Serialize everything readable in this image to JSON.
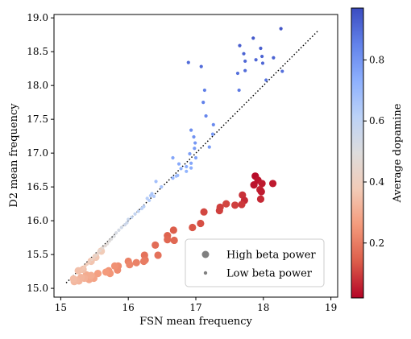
{
  "chart_data": {
    "type": "scatter",
    "title": "",
    "xlabel": "FSN mean frequency",
    "ylabel": "D2 mean frequency",
    "xlim": [
      14.9,
      19.1
    ],
    "ylim": [
      14.87,
      19.05
    ],
    "xticks": [
      15,
      16,
      17,
      18,
      19
    ],
    "yticks": [
      15.0,
      15.5,
      16.0,
      16.5,
      17.0,
      17.5,
      18.0,
      18.5,
      19.0
    ],
    "xtick_labels": [
      "15",
      "16",
      "17",
      "18",
      "19"
    ],
    "ytick_labels": [
      "15.0",
      "15.5",
      "16.0",
      "16.5",
      "17.0",
      "17.5",
      "18.0",
      "18.5",
      "19.0"
    ],
    "grid": false,
    "reference_line": {
      "style": "dotted",
      "x": [
        15.08,
        18.82
      ],
      "y": [
        15.08,
        18.82
      ]
    },
    "colorbar": {
      "label": "Average dopamine",
      "range": [
        0.02,
        0.97
      ],
      "ticks": [
        0.2,
        0.4,
        0.6,
        0.8
      ],
      "tick_labels": [
        "0.2",
        "0.4",
        "0.6",
        "0.8"
      ],
      "colormap": "coolwarm_r",
      "colors": [
        "#b40426",
        "#dc5d4a",
        "#f49a7b",
        "#f2cbb7",
        "#dddcdc",
        "#bcd2f7",
        "#8db0fe",
        "#6282ea",
        "#3b4cc0"
      ]
    },
    "legend": {
      "placement": "lower-right",
      "entries": [
        {
          "label": "High beta power",
          "marker": "large"
        },
        {
          "label": "Low beta power",
          "marker": "small"
        }
      ]
    },
    "series": [
      {
        "name": "High beta power",
        "marker_size": "large",
        "points": [
          {
            "x": 17.88,
            "y": 16.66,
            "c": 0.03
          },
          {
            "x": 17.92,
            "y": 16.6,
            "c": 0.04
          },
          {
            "x": 17.98,
            "y": 16.55,
            "c": 0.05
          },
          {
            "x": 17.86,
            "y": 16.53,
            "c": 0.04
          },
          {
            "x": 18.14,
            "y": 16.55,
            "c": 0.05
          },
          {
            "x": 17.95,
            "y": 16.46,
            "c": 0.06
          },
          {
            "x": 17.97,
            "y": 16.43,
            "c": 0.05
          },
          {
            "x": 17.96,
            "y": 16.32,
            "c": 0.07
          },
          {
            "x": 17.69,
            "y": 16.38,
            "c": 0.08
          },
          {
            "x": 17.72,
            "y": 16.3,
            "c": 0.07
          },
          {
            "x": 17.58,
            "y": 16.23,
            "c": 0.1
          },
          {
            "x": 17.68,
            "y": 16.24,
            "c": 0.09
          },
          {
            "x": 17.45,
            "y": 16.25,
            "c": 0.11
          },
          {
            "x": 17.36,
            "y": 16.2,
            "c": 0.1
          },
          {
            "x": 17.35,
            "y": 16.15,
            "c": 0.1
          },
          {
            "x": 17.12,
            "y": 16.13,
            "c": 0.11
          },
          {
            "x": 17.07,
            "y": 15.96,
            "c": 0.12
          },
          {
            "x": 16.95,
            "y": 15.9,
            "c": 0.13
          },
          {
            "x": 16.67,
            "y": 15.86,
            "c": 0.14
          },
          {
            "x": 16.58,
            "y": 15.78,
            "c": 0.15
          },
          {
            "x": 16.68,
            "y": 15.71,
            "c": 0.16
          },
          {
            "x": 16.58,
            "y": 15.72,
            "c": 0.16
          },
          {
            "x": 16.4,
            "y": 15.64,
            "c": 0.17
          },
          {
            "x": 16.44,
            "y": 15.49,
            "c": 0.18
          },
          {
            "x": 16.24,
            "y": 15.49,
            "c": 0.18
          },
          {
            "x": 16.25,
            "y": 15.42,
            "c": 0.19
          },
          {
            "x": 16.23,
            "y": 15.4,
            "c": 0.2
          },
          {
            "x": 16.12,
            "y": 15.38,
            "c": 0.21
          },
          {
            "x": 16.0,
            "y": 15.4,
            "c": 0.21
          },
          {
            "x": 16.02,
            "y": 15.35,
            "c": 0.22
          },
          {
            "x": 15.85,
            "y": 15.33,
            "c": 0.23
          },
          {
            "x": 15.84,
            "y": 15.27,
            "c": 0.23
          },
          {
            "x": 15.8,
            "y": 15.33,
            "c": 0.24
          },
          {
            "x": 15.71,
            "y": 15.26,
            "c": 0.25
          },
          {
            "x": 15.73,
            "y": 15.22,
            "c": 0.25
          },
          {
            "x": 15.67,
            "y": 15.24,
            "c": 0.26
          },
          {
            "x": 15.55,
            "y": 15.22,
            "c": 0.27
          },
          {
            "x": 15.49,
            "y": 15.15,
            "c": 0.28
          },
          {
            "x": 15.42,
            "y": 15.13,
            "c": 0.29
          },
          {
            "x": 15.45,
            "y": 15.19,
            "c": 0.3
          },
          {
            "x": 15.38,
            "y": 15.2,
            "c": 0.3
          },
          {
            "x": 15.35,
            "y": 15.15,
            "c": 0.31
          },
          {
            "x": 15.3,
            "y": 15.16,
            "c": 0.32
          },
          {
            "x": 15.27,
            "y": 15.11,
            "c": 0.32
          },
          {
            "x": 15.23,
            "y": 15.12,
            "c": 0.33
          },
          {
            "x": 15.2,
            "y": 15.1,
            "c": 0.33
          },
          {
            "x": 15.19,
            "y": 15.14,
            "c": 0.34
          },
          {
            "x": 15.26,
            "y": 15.26,
            "c": 0.35
          },
          {
            "x": 15.33,
            "y": 15.28,
            "c": 0.35
          },
          {
            "x": 15.45,
            "y": 15.4,
            "c": 0.36
          },
          {
            "x": 15.52,
            "y": 15.46,
            "c": 0.37
          },
          {
            "x": 15.6,
            "y": 15.55,
            "c": 0.38
          }
        ]
      },
      {
        "name": "Low beta power",
        "marker_size": "small",
        "points": [
          {
            "x": 18.26,
            "y": 18.84,
            "c": 0.95
          },
          {
            "x": 17.85,
            "y": 18.7,
            "c": 0.94
          },
          {
            "x": 17.65,
            "y": 18.59,
            "c": 0.93
          },
          {
            "x": 17.96,
            "y": 18.55,
            "c": 0.93
          },
          {
            "x": 17.71,
            "y": 18.47,
            "c": 0.92
          },
          {
            "x": 17.98,
            "y": 18.43,
            "c": 0.92
          },
          {
            "x": 18.15,
            "y": 18.41,
            "c": 0.92
          },
          {
            "x": 17.73,
            "y": 18.36,
            "c": 0.91
          },
          {
            "x": 17.89,
            "y": 18.38,
            "c": 0.91
          },
          {
            "x": 16.89,
            "y": 18.34,
            "c": 0.9
          },
          {
            "x": 17.08,
            "y": 18.28,
            "c": 0.9
          },
          {
            "x": 17.99,
            "y": 18.33,
            "c": 0.91
          },
          {
            "x": 17.73,
            "y": 18.22,
            "c": 0.9
          },
          {
            "x": 18.28,
            "y": 18.21,
            "c": 0.89
          },
          {
            "x": 17.62,
            "y": 18.18,
            "c": 0.89
          },
          {
            "x": 18.04,
            "y": 18.08,
            "c": 0.88
          },
          {
            "x": 17.64,
            "y": 17.93,
            "c": 0.87
          },
          {
            "x": 17.13,
            "y": 17.93,
            "c": 0.86
          },
          {
            "x": 17.11,
            "y": 17.75,
            "c": 0.85
          },
          {
            "x": 17.15,
            "y": 17.55,
            "c": 0.84
          },
          {
            "x": 17.26,
            "y": 17.42,
            "c": 0.83
          },
          {
            "x": 16.93,
            "y": 17.34,
            "c": 0.82
          },
          {
            "x": 16.97,
            "y": 17.24,
            "c": 0.81
          },
          {
            "x": 16.99,
            "y": 17.15,
            "c": 0.8
          },
          {
            "x": 16.98,
            "y": 17.07,
            "c": 0.79
          },
          {
            "x": 17.2,
            "y": 17.09,
            "c": 0.79
          },
          {
            "x": 17.25,
            "y": 17.28,
            "c": 0.8
          },
          {
            "x": 16.91,
            "y": 16.99,
            "c": 0.78
          },
          {
            "x": 17.0,
            "y": 16.93,
            "c": 0.77
          },
          {
            "x": 16.93,
            "y": 16.85,
            "c": 0.76
          },
          {
            "x": 16.66,
            "y": 16.93,
            "c": 0.76
          },
          {
            "x": 16.75,
            "y": 16.84,
            "c": 0.75
          },
          {
            "x": 16.86,
            "y": 16.8,
            "c": 0.74
          },
          {
            "x": 16.93,
            "y": 16.78,
            "c": 0.74
          },
          {
            "x": 16.78,
            "y": 16.77,
            "c": 0.73
          },
          {
            "x": 16.86,
            "y": 16.73,
            "c": 0.72
          },
          {
            "x": 16.66,
            "y": 16.63,
            "c": 0.71
          },
          {
            "x": 16.73,
            "y": 16.67,
            "c": 0.7
          },
          {
            "x": 16.71,
            "y": 16.66,
            "c": 0.69
          },
          {
            "x": 16.41,
            "y": 16.58,
            "c": 0.68
          },
          {
            "x": 16.49,
            "y": 16.5,
            "c": 0.67
          },
          {
            "x": 16.35,
            "y": 16.4,
            "c": 0.66
          },
          {
            "x": 16.33,
            "y": 16.37,
            "c": 0.65
          },
          {
            "x": 16.38,
            "y": 16.36,
            "c": 0.64
          },
          {
            "x": 16.28,
            "y": 16.33,
            "c": 0.63
          },
          {
            "x": 16.31,
            "y": 16.3,
            "c": 0.63
          },
          {
            "x": 16.23,
            "y": 16.21,
            "c": 0.62
          },
          {
            "x": 16.2,
            "y": 16.18,
            "c": 0.61
          },
          {
            "x": 16.15,
            "y": 16.14,
            "c": 0.6
          },
          {
            "x": 16.1,
            "y": 16.1,
            "c": 0.59
          },
          {
            "x": 16.05,
            "y": 16.05,
            "c": 0.58
          },
          {
            "x": 16.0,
            "y": 16.02,
            "c": 0.57
          },
          {
            "x": 15.98,
            "y": 15.97,
            "c": 0.56
          },
          {
            "x": 15.95,
            "y": 15.94,
            "c": 0.55
          },
          {
            "x": 15.9,
            "y": 15.9,
            "c": 0.54
          },
          {
            "x": 15.86,
            "y": 15.86,
            "c": 0.53
          },
          {
            "x": 15.82,
            "y": 15.82,
            "c": 0.52
          },
          {
            "x": 15.79,
            "y": 15.77,
            "c": 0.51
          },
          {
            "x": 15.75,
            "y": 15.73,
            "c": 0.5
          },
          {
            "x": 15.72,
            "y": 15.7,
            "c": 0.49
          },
          {
            "x": 15.69,
            "y": 15.66,
            "c": 0.48
          },
          {
            "x": 15.66,
            "y": 15.63,
            "c": 0.47
          },
          {
            "x": 15.62,
            "y": 15.6,
            "c": 0.46
          },
          {
            "x": 15.58,
            "y": 15.56,
            "c": 0.45
          },
          {
            "x": 15.55,
            "y": 15.52,
            "c": 0.44
          },
          {
            "x": 15.52,
            "y": 15.49,
            "c": 0.43
          },
          {
            "x": 15.49,
            "y": 15.46,
            "c": 0.42
          },
          {
            "x": 15.46,
            "y": 15.43,
            "c": 0.41
          },
          {
            "x": 15.42,
            "y": 15.39,
            "c": 0.4
          },
          {
            "x": 15.39,
            "y": 15.36,
            "c": 0.39
          },
          {
            "x": 15.36,
            "y": 15.33,
            "c": 0.38
          },
          {
            "x": 15.34,
            "y": 15.3,
            "c": 0.37
          },
          {
            "x": 15.31,
            "y": 15.27,
            "c": 0.36
          }
        ]
      }
    ]
  }
}
